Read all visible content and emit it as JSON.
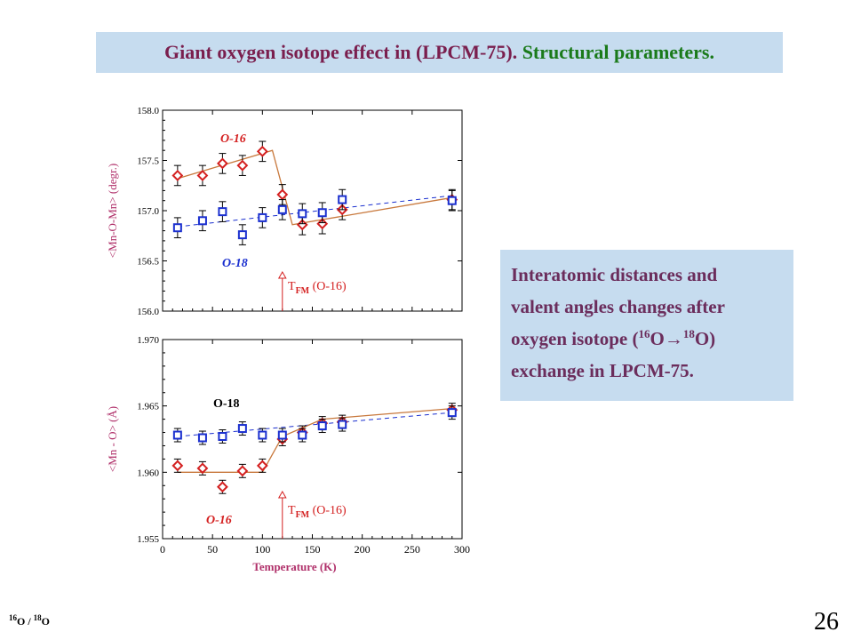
{
  "slide": {
    "title_part1": "Giant oxygen isotope effect in (LPCM-75).",
    "title_part2": "Structural parameters.",
    "info_line1": "Interatomic distances and",
    "info_line2": "valent angles changes after",
    "info_line3_pre": "oxygen isotope (",
    "info_line3_sup1": "16",
    "info_line3_arrow": "O→",
    "info_line3_sup2": "18",
    "info_line3_post": "O)",
    "info_line4": "exchange in LPCM-75.",
    "footnote_sup1": "16",
    "footnote_mid": "O / ",
    "footnote_sup2": "18",
    "footnote_end": "O",
    "page_number": "26"
  },
  "colors": {
    "o16": "#d42020",
    "o18": "#1a2fcf",
    "fit_o16": "#c8783c",
    "axis_label": "#b0306a",
    "title_bg": "#c6dcef"
  },
  "chart_data": [
    {
      "type": "scatter",
      "ylabel": "<Mn-O-Mn> (degr.)",
      "xlim": [
        0,
        300
      ],
      "ylim": [
        156.0,
        158.0
      ],
      "yticks": [
        "156.0",
        "156.5",
        "157.0",
        "157.5",
        "158.0"
      ],
      "annotations": {
        "o16_label": "O-16",
        "o18_label": "O-18",
        "tfm_main": "T",
        "tfm_sub": "FM",
        "tfm_paren": " (O-16)"
      },
      "tfm_x": 120,
      "series": [
        {
          "name": "O-16",
          "x": [
            15,
            40,
            60,
            80,
            100,
            120,
            140,
            160,
            180,
            290
          ],
          "y": [
            157.35,
            157.35,
            157.47,
            157.45,
            157.59,
            157.16,
            156.86,
            156.87,
            157.01,
            157.11
          ],
          "err": [
            0.1,
            0.1,
            0.1,
            0.1,
            0.1,
            0.1,
            0.1,
            0.1,
            0.1,
            0.1
          ]
        },
        {
          "name": "O-18",
          "x": [
            15,
            40,
            60,
            80,
            100,
            120,
            140,
            160,
            180,
            290
          ],
          "y": [
            156.83,
            156.9,
            156.99,
            156.76,
            156.93,
            157.01,
            156.97,
            156.98,
            157.11,
            157.1
          ],
          "err": [
            0.1,
            0.1,
            0.1,
            0.1,
            0.1,
            0.1,
            0.1,
            0.1,
            0.1,
            0.1
          ]
        }
      ],
      "fit_o16": {
        "x": [
          15,
          110,
          130,
          290
        ],
        "y": [
          157.32,
          157.6,
          156.86,
          157.13
        ]
      },
      "fit_o18": {
        "x": [
          15,
          290
        ],
        "y": [
          156.84,
          157.15
        ]
      }
    },
    {
      "type": "scatter",
      "ylabel": "<Mn - O> (Å)",
      "xlabel": "Temperature (K)",
      "xlim": [
        0,
        300
      ],
      "ylim": [
        1.955,
        1.97
      ],
      "xticks": [
        "0",
        "50",
        "100",
        "150",
        "200",
        "250",
        "300"
      ],
      "yticks": [
        "1.955",
        "1.960",
        "1.965",
        "1.970"
      ],
      "annotations": {
        "o16_label": "O-16",
        "o18_label": "O-18",
        "tfm_main": "T",
        "tfm_sub": "FM",
        "tfm_paren": " (O-16)"
      },
      "tfm_x": 120,
      "series": [
        {
          "name": "O-16",
          "x": [
            15,
            40,
            60,
            80,
            100,
            120,
            140,
            160,
            180,
            290
          ],
          "y": [
            1.9605,
            1.9603,
            1.9589,
            1.9601,
            1.9605,
            1.9625,
            1.963,
            1.9637,
            1.9638,
            1.9647
          ],
          "err": [
            0.0005,
            0.0005,
            0.0005,
            0.0005,
            0.0005,
            0.0005,
            0.0005,
            0.0005,
            0.0005,
            0.0005
          ]
        },
        {
          "name": "O-18",
          "x": [
            15,
            40,
            60,
            80,
            100,
            120,
            140,
            160,
            180,
            290
          ],
          "y": [
            1.9628,
            1.9626,
            1.9627,
            1.9633,
            1.9628,
            1.9628,
            1.9628,
            1.9635,
            1.9636,
            1.9645
          ],
          "err": [
            0.0005,
            0.0005,
            0.0005,
            0.0005,
            0.0005,
            0.0005,
            0.0005,
            0.0005,
            0.0005,
            0.0005
          ]
        }
      ],
      "fit_o16": {
        "x": [
          15,
          100,
          120,
          160,
          290
        ],
        "y": [
          1.96,
          1.96,
          1.9627,
          1.964,
          1.9648
        ]
      },
      "fit_o18": {
        "x": [
          15,
          290
        ],
        "y": [
          1.9627,
          1.9645
        ]
      }
    }
  ]
}
